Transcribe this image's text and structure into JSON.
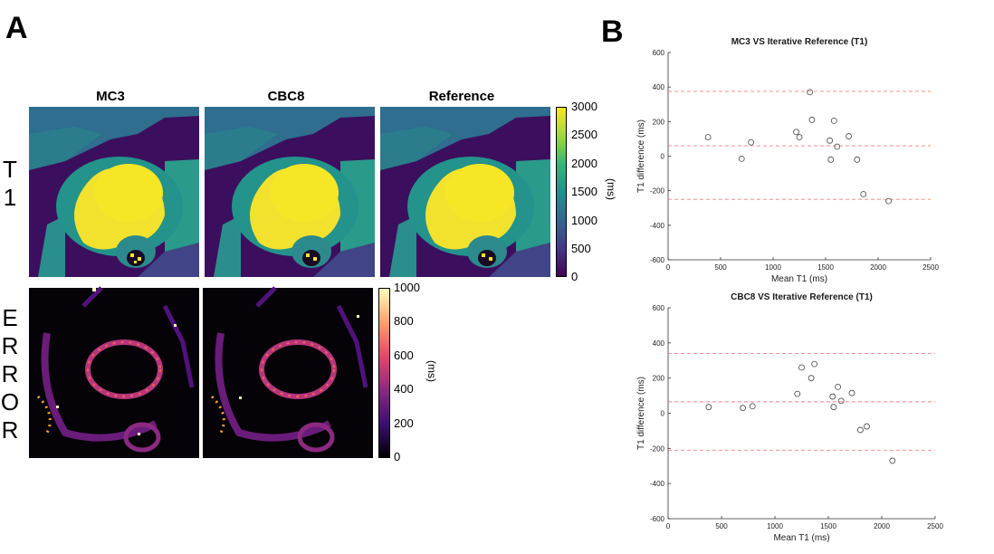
{
  "panel_a": {
    "label": "A",
    "columns": [
      "MC3",
      "CBC8",
      "Reference"
    ],
    "row_t1_letters": [
      "T",
      "1"
    ],
    "row_error_letters": [
      "E",
      "R",
      "R",
      "O",
      "R"
    ],
    "t1_colorbar": {
      "ticks": [
        "3000",
        "2500",
        "2000",
        "1500",
        "1000",
        "500",
        "0"
      ],
      "unit": "(ms)",
      "colors": [
        "#fbe723",
        "#9fd938",
        "#35b779",
        "#21908d",
        "#31688e",
        "#443983",
        "#440154"
      ]
    },
    "error_colorbar": {
      "ticks": [
        "1000",
        "800",
        "600",
        "400",
        "200",
        "0"
      ],
      "unit": "(ms)",
      "colors": [
        "#fcfdbf",
        "#fe9f6d",
        "#de4968",
        "#8c2981",
        "#3b0f70",
        "#000004"
      ]
    }
  },
  "panel_b": {
    "label": "B"
  },
  "chart_data": [
    {
      "type": "scatter",
      "title": "MC3 VS Iterative Reference (T1)",
      "xlabel": "Mean T1 (ms)",
      "ylabel": "T1 difference (ms)",
      "xlim": [
        0,
        2500
      ],
      "ylim": [
        -600,
        600
      ],
      "xticks": [
        "0",
        "500",
        "1000",
        "1500",
        "2000",
        "2500"
      ],
      "yticks": [
        "600",
        "400",
        "200",
        "0",
        "-200",
        "-400",
        "-600"
      ],
      "reference_lines": [
        375,
        60,
        -250
      ],
      "points": [
        {
          "x": 380,
          "y": 110
        },
        {
          "x": 700,
          "y": -15
        },
        {
          "x": 790,
          "y": 80
        },
        {
          "x": 1220,
          "y": 140
        },
        {
          "x": 1250,
          "y": 110
        },
        {
          "x": 1350,
          "y": 370
        },
        {
          "x": 1370,
          "y": 210
        },
        {
          "x": 1540,
          "y": 90
        },
        {
          "x": 1550,
          "y": -20
        },
        {
          "x": 1580,
          "y": 205
        },
        {
          "x": 1610,
          "y": 55
        },
        {
          "x": 1720,
          "y": 115
        },
        {
          "x": 1800,
          "y": -20
        },
        {
          "x": 1860,
          "y": -220
        },
        {
          "x": 2100,
          "y": -260
        }
      ]
    },
    {
      "type": "scatter",
      "title": "CBC8 VS Iterative Reference (T1)",
      "xlabel": "Mean T1 (ms)",
      "ylabel": "T1 difference (ms)",
      "xlim": [
        0,
        2500
      ],
      "ylim": [
        -600,
        600
      ],
      "xticks": [
        "0",
        "500",
        "1000",
        "1500",
        "2000",
        "2500"
      ],
      "yticks": [
        "600",
        "400",
        "200",
        "0",
        "-200",
        "-400",
        "-600"
      ],
      "reference_lines": [
        340,
        65,
        -210
      ],
      "points": [
        {
          "x": 380,
          "y": 35
        },
        {
          "x": 700,
          "y": 30
        },
        {
          "x": 790,
          "y": 40
        },
        {
          "x": 1210,
          "y": 110
        },
        {
          "x": 1250,
          "y": 260
        },
        {
          "x": 1340,
          "y": 200
        },
        {
          "x": 1370,
          "y": 280
        },
        {
          "x": 1540,
          "y": 95
        },
        {
          "x": 1550,
          "y": 35
        },
        {
          "x": 1590,
          "y": 150
        },
        {
          "x": 1620,
          "y": 70
        },
        {
          "x": 1720,
          "y": 115
        },
        {
          "x": 1800,
          "y": -95
        },
        {
          "x": 1860,
          "y": -75
        },
        {
          "x": 2100,
          "y": -270
        }
      ]
    }
  ]
}
